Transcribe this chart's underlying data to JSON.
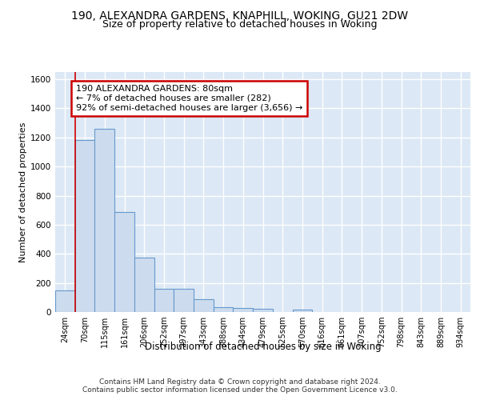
{
  "title1": "190, ALEXANDRA GARDENS, KNAPHILL, WOKING, GU21 2DW",
  "title2": "Size of property relative to detached houses in Woking",
  "xlabel": "Distribution of detached houses by size in Woking",
  "ylabel": "Number of detached properties",
  "footer": "Contains HM Land Registry data © Crown copyright and database right 2024.\nContains public sector information licensed under the Open Government Licence v3.0.",
  "categories": [
    "24sqm",
    "70sqm",
    "115sqm",
    "161sqm",
    "206sqm",
    "252sqm",
    "297sqm",
    "343sqm",
    "388sqm",
    "434sqm",
    "479sqm",
    "525sqm",
    "570sqm",
    "616sqm",
    "661sqm",
    "707sqm",
    "752sqm",
    "798sqm",
    "843sqm",
    "889sqm",
    "934sqm"
  ],
  "values": [
    150,
    1185,
    1260,
    690,
    375,
    162,
    162,
    90,
    35,
    25,
    20,
    0,
    15,
    0,
    0,
    0,
    0,
    0,
    0,
    0,
    0
  ],
  "bar_color": "#ccdcee",
  "bar_edge_color": "#6699cc",
  "annotation_text": "190 ALEXANDRA GARDENS: 80sqm\n← 7% of detached houses are smaller (282)\n92% of semi-detached houses are larger (3,656) →",
  "annotation_box_color": "#cc0000",
  "highlight_bar_index": 1,
  "ylim": [
    0,
    1650
  ],
  "bg_color": "#dce8f5",
  "grid_color": "#ffffff",
  "title1_fontsize": 10,
  "title2_fontsize": 9,
  "tick_fontsize": 7,
  "ylabel_fontsize": 8,
  "xlabel_fontsize": 8.5,
  "footer_fontsize": 6.5,
  "ann_fontsize": 8
}
